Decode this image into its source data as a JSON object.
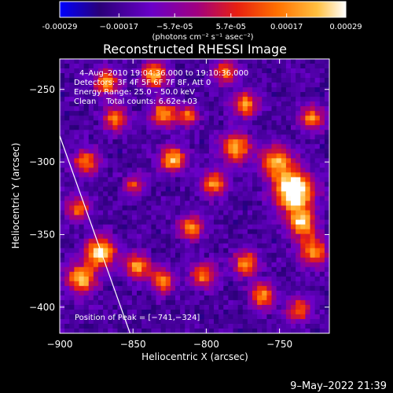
{
  "chart_data": {
    "type": "heatmap",
    "title": "Reconstructed RHESSI Image",
    "xlabel": "Heliocentric X (arcsec)",
    "ylabel": "Heliocentric Y (arcsec)",
    "xlim": [
      -900,
      -716
    ],
    "ylim": [
      -418,
      -229
    ],
    "x_ticks": [
      -900,
      -850,
      -800,
      -750
    ],
    "x_tick_labels": [
      "−900",
      "−850",
      "−800",
      "−750"
    ],
    "y_ticks": [
      -250,
      -300,
      -350,
      -400
    ],
    "y_tick_labels": [
      "−250",
      "−300",
      "−350",
      "−400"
    ],
    "colorbar": {
      "range": [
        -0.00029,
        0.00029
      ],
      "tick_values": [
        -0.00029,
        -0.00017,
        -5.7e-05,
        5.7e-05,
        0.00017,
        0.00029
      ],
      "tick_labels": [
        "-0.00029",
        "−0.00017",
        "−5.7e-05",
        "5.7e-05",
        "0.00017",
        "0.00029"
      ],
      "units_label": "(photons cm⁻² s⁻¹ asec⁻²)",
      "colormap": [
        "#0000ff",
        "#2a0078",
        "#6a00c8",
        "#a00080",
        "#e82010",
        "#ff7000",
        "#ffc040",
        "#ffffff"
      ]
    },
    "annotations": {
      "time_range": "4–Aug–2010 19:04:36.000 to 19:10:36.000",
      "detectors": "Detectors: 3F 4F 5F 6F 7F 8F, Att 0",
      "energy_range": "Energy Range: 25.0 – 50.0 keV",
      "algorithm": "Clean    Total counts: 6.62e+03",
      "peak": "Position of Peak = [−741,−324]"
    },
    "peak_position": [
      -741,
      -324
    ],
    "limb_line": [
      [
        -900,
        -282
      ],
      [
        -852,
        -418
      ]
    ],
    "grid_cols": 56,
    "grid_rows": 58,
    "blobs": [
      {
        "x": -740,
        "y": -320,
        "amp": 1.0,
        "s": 9
      },
      {
        "x": -735,
        "y": -342,
        "amp": 0.7,
        "s": 7
      },
      {
        "x": -752,
        "y": -300,
        "amp": 0.6,
        "s": 8
      },
      {
        "x": -727,
        "y": -362,
        "amp": 0.6,
        "s": 7
      },
      {
        "x": -780,
        "y": -290,
        "amp": 0.65,
        "s": 7
      },
      {
        "x": -773,
        "y": -260,
        "amp": 0.6,
        "s": 6
      },
      {
        "x": -795,
        "y": -315,
        "amp": 0.6,
        "s": 6
      },
      {
        "x": -835,
        "y": -240,
        "amp": 0.7,
        "s": 6
      },
      {
        "x": -829,
        "y": -267,
        "amp": 0.65,
        "s": 6
      },
      {
        "x": -823,
        "y": -298,
        "amp": 0.7,
        "s": 6
      },
      {
        "x": -810,
        "y": -345,
        "amp": 0.6,
        "s": 6
      },
      {
        "x": -802,
        "y": -378,
        "amp": 0.55,
        "s": 6
      },
      {
        "x": -862,
        "y": -270,
        "amp": 0.55,
        "s": 6
      },
      {
        "x": -868,
        "y": -245,
        "amp": 0.6,
        "s": 6
      },
      {
        "x": -882,
        "y": -300,
        "amp": 0.55,
        "s": 6
      },
      {
        "x": -888,
        "y": -332,
        "amp": 0.5,
        "s": 6
      },
      {
        "x": -872,
        "y": -362,
        "amp": 0.8,
        "s": 7
      },
      {
        "x": -885,
        "y": -380,
        "amp": 0.7,
        "s": 7
      },
      {
        "x": -847,
        "y": -372,
        "amp": 0.65,
        "s": 6
      },
      {
        "x": -830,
        "y": -382,
        "amp": 0.55,
        "s": 6
      },
      {
        "x": -773,
        "y": -370,
        "amp": 0.6,
        "s": 6
      },
      {
        "x": -762,
        "y": -392,
        "amp": 0.6,
        "s": 6
      },
      {
        "x": -728,
        "y": -270,
        "amp": 0.55,
        "s": 6
      },
      {
        "x": -737,
        "y": -402,
        "amp": 0.5,
        "s": 6
      },
      {
        "x": -787,
        "y": -238,
        "amp": 0.5,
        "s": 6
      },
      {
        "x": -812,
        "y": -268,
        "amp": 0.5,
        "s": 5
      },
      {
        "x": -849,
        "y": -316,
        "amp": 0.45,
        "s": 5
      }
    ]
  },
  "date_stamp": "9–May–2022 21:39"
}
